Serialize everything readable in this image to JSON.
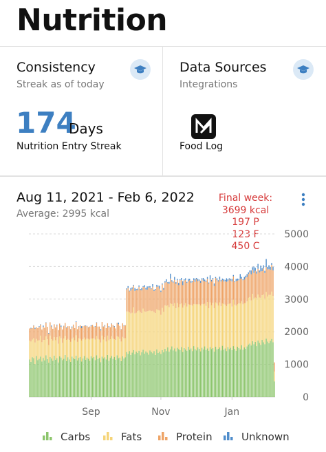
{
  "header": {
    "title": "Nutrition"
  },
  "cards": {
    "consistency": {
      "title": "Consistency",
      "subtitle": "Streak as of today",
      "value": 174,
      "unit": "Days",
      "label": "Nutrition Entry Streak"
    },
    "data_sources": {
      "title": "Data Sources",
      "subtitle": "Integrations",
      "items": [
        "Food Log"
      ]
    }
  },
  "chart_data": {
    "type": "bar",
    "stacked": true,
    "title": "Aug 11, 2021 - Feb 6, 2022",
    "subtitle": "Average: 2995 kcal",
    "annotation": [
      "Final week:",
      "3699 kcal",
      "197 P",
      "123 F",
      "450 C"
    ],
    "grid": true,
    "legend": "bottom",
    "ylim": [
      0,
      5000
    ],
    "yticks": [
      0,
      1000,
      2000,
      3000,
      4000,
      5000
    ],
    "categories": [
      null,
      null,
      null,
      null,
      null,
      null,
      null,
      null,
      null,
      null,
      null,
      null,
      null,
      null,
      null,
      null,
      null,
      null,
      null,
      null,
      null,
      null,
      null,
      null,
      null,
      null,
      null,
      null,
      null,
      null,
      null,
      null,
      null,
      null,
      null,
      null,
      null,
      null,
      null,
      null,
      null,
      null,
      null,
      null,
      null,
      "Sep",
      null,
      null,
      null,
      null,
      null,
      null,
      null,
      null,
      null,
      null,
      null,
      null,
      null,
      null,
      null,
      null,
      null,
      null,
      null,
      null,
      null,
      null,
      null,
      null,
      null,
      null,
      null,
      null,
      null,
      null,
      null,
      null,
      null,
      null,
      null,
      null,
      null,
      null,
      null,
      null,
      null,
      null,
      null,
      null,
      null,
      null,
      null,
      null,
      null,
      null,
      "Nov",
      null,
      null,
      null,
      null,
      null,
      null,
      null,
      null,
      null,
      null,
      null,
      null,
      null,
      null,
      null,
      null,
      null,
      null,
      null,
      null,
      null,
      null,
      null,
      null,
      null,
      null,
      null,
      null,
      null,
      null,
      null,
      null,
      null,
      null,
      null,
      null,
      null,
      null,
      null,
      null,
      null,
      null,
      null,
      null,
      null,
      null,
      null,
      null,
      null,
      null,
      null,
      "Jan",
      null,
      null,
      null,
      null,
      null,
      null,
      null,
      null,
      null,
      null,
      null,
      null,
      null,
      null,
      null,
      null,
      null,
      null,
      null,
      null,
      null,
      null,
      null,
      null,
      null,
      null,
      null,
      null,
      null,
      null,
      null
    ],
    "series": [
      {
        "name": "Carbs",
        "color": "#8cc56c",
        "values": [
          1150,
          1080,
          1220,
          1190,
          1010,
          1260,
          1130,
          1170,
          1240,
          1090,
          1200,
          1120,
          1280,
          1160,
          1050,
          1230,
          1180,
          1110,
          1270,
          1140,
          1190,
          1060,
          1250,
          1210,
          1130,
          1170,
          1290,
          1100,
          1220,
          1150,
          1080,
          1240,
          1190,
          1160,
          1270,
          1120,
          1200,
          1230,
          1090,
          1180,
          1260,
          1140,
          1210,
          1170,
          1110,
          1250,
          1190,
          1230,
          1130,
          1280,
          1160,
          1200,
          1070,
          1240,
          1180,
          1220,
          1150,
          1290,
          1110,
          1200,
          1260,
          1170,
          1230,
          1140,
          1280,
          1190,
          1210,
          1100,
          1250,
          1180,
          1220,
          1380,
          1320,
          1410,
          1290,
          1360,
          1440,
          1310,
          1390,
          1350,
          1420,
          1280,
          1370,
          1450,
          1330,
          1400,
          1360,
          1300,
          1430,
          1380,
          1340,
          1410,
          1290,
          1460,
          1350,
          1390,
          1320,
          1440,
          1370,
          1480,
          1410,
          1520,
          1390,
          1460,
          1550,
          1430,
          1490,
          1400,
          1510,
          1470,
          1440,
          1530,
          1380,
          1500,
          1460,
          1420,
          1540,
          1450,
          1490,
          1410,
          1560,
          1470,
          1430,
          1520,
          1480,
          1400,
          1510,
          1460,
          1550,
          1440,
          1490,
          1420,
          1530,
          1470,
          1500,
          1390,
          1540,
          1460,
          1480,
          1520,
          1430,
          1570,
          1450,
          1490,
          1410,
          1530,
          1470,
          1510,
          1440,
          1560,
          1480,
          1420,
          1540,
          1500,
          1460,
          1590,
          1450,
          1520,
          1480,
          1550,
          1610,
          1640,
          1580,
          1710,
          1620,
          1690,
          1560,
          1730,
          1660,
          1600,
          1750,
          1680,
          1620,
          1790,
          1700,
          1650,
          1720,
          1780,
          1680,
          480
        ]
      },
      {
        "name": "Fats",
        "color": "#f5d479",
        "values": [
          580,
          620,
          540,
          610,
          660,
          520,
          600,
          570,
          640,
          590,
          550,
          630,
          580,
          610,
          540,
          650,
          590,
          620,
          560,
          600,
          640,
          570,
          610,
          590,
          530,
          620,
          580,
          650,
          560,
          600,
          610,
          540,
          630,
          580,
          620,
          570,
          600,
          550,
          640,
          590,
          560,
          620,
          580,
          610,
          650,
          540,
          600,
          570,
          630,
          590,
          620,
          560,
          600,
          640,
          580,
          610,
          550,
          590,
          630,
          570,
          600,
          620,
          540,
          610,
          580,
          650,
          570,
          600,
          590,
          620,
          580,
          1240,
          1300,
          1180,
          1270,
          1220,
          1310,
          1250,
          1190,
          1280,
          1230,
          1320,
          1200,
          1260,
          1290,
          1210,
          1270,
          1340,
          1220,
          1250,
          1300,
          1190,
          1280,
          1230,
          1310,
          1260,
          1200,
          1290,
          1240,
          1330,
          1380,
          1290,
          1360,
          1410,
          1300,
          1350,
          1390,
          1320,
          1370,
          1280,
          1400,
          1340,
          1360,
          1310,
          1420,
          1350,
          1300,
          1380,
          1330,
          1390,
          1290,
          1370,
          1410,
          1320,
          1360,
          1400,
          1340,
          1380,
          1310,
          1350,
          1420,
          1300,
          1370,
          1340,
          1390,
          1330,
          1360,
          1410,
          1320,
          1380,
          1350,
          1300,
          1400,
          1340,
          1370,
          1310,
          1390,
          1360,
          1330,
          1420,
          1350,
          1380,
          1300,
          1370,
          1410,
          1340,
          1390,
          1360,
          1400,
          1380,
          1430,
          1420,
          1380,
          1450,
          1400,
          1360,
          1470,
          1410,
          1390,
          1440,
          1370,
          1460,
          1400,
          1430,
          1380,
          1480,
          1410,
          1450,
          1420,
          300
        ]
      },
      {
        "name": "Protein",
        "color": "#eea467",
        "values": [
          370,
          400,
          350,
          390,
          420,
          360,
          380,
          410,
          340,
          390,
          400,
          370,
          420,
          380,
          350,
          410,
          390,
          360,
          400,
          380,
          370,
          420,
          390,
          350,
          410,
          380,
          400,
          360,
          390,
          420,
          380,
          350,
          400,
          370,
          410,
          390,
          360,
          420,
          380,
          400,
          370,
          410,
          390,
          350,
          400,
          380,
          420,
          360,
          390,
          410,
          380,
          400,
          370,
          420,
          390,
          360,
          410,
          380,
          400,
          370,
          390,
          420,
          380,
          350,
          410,
          390,
          400,
          370,
          420,
          380,
          400,
          680,
          720,
          650,
          700,
          740,
          660,
          690,
          710,
          640,
          730,
          680,
          700,
          670,
          750,
          690,
          660,
          720,
          700,
          680,
          740,
          650,
          710,
          690,
          730,
          670,
          700,
          720,
          680,
          700,
          740,
          680,
          720,
          760,
          690,
          730,
          710,
          750,
          700,
          680,
          740,
          720,
          690,
          760,
          710,
          730,
          700,
          750,
          680,
          720,
          740,
          690,
          770,
          710,
          730,
          700,
          750,
          720,
          690,
          740,
          710,
          760,
          700,
          730,
          720,
          680,
          750,
          710,
          740,
          700,
          760,
          720,
          690,
          730,
          750,
          710,
          740,
          700,
          770,
          720,
          690,
          750,
          730,
          710,
          760,
          700,
          740,
          720,
          780,
          750,
          730,
          760,
          800,
          740,
          780,
          820,
          750,
          790,
          770,
          810,
          740,
          800,
          780,
          760,
          830,
          790,
          770,
          820,
          780,
          280
        ]
      },
      {
        "name": "Unknown",
        "color": "#4f8dcb",
        "values": [
          0,
          20,
          0,
          10,
          30,
          0,
          0,
          20,
          10,
          0,
          40,
          0,
          10,
          0,
          20,
          0,
          30,
          0,
          0,
          10,
          20,
          0,
          0,
          40,
          0,
          10,
          0,
          20,
          0,
          0,
          10,
          30,
          0,
          0,
          20,
          0,
          10,
          0,
          60,
          0,
          0,
          20,
          0,
          10,
          0,
          30,
          0,
          0,
          20,
          10,
          0,
          0,
          40,
          0,
          10,
          20,
          0,
          0,
          30,
          0,
          10,
          0,
          20,
          0,
          0,
          50,
          0,
          10,
          0,
          20,
          0,
          30,
          60,
          20,
          80,
          40,
          30,
          90,
          20,
          50,
          40,
          30,
          70,
          20,
          60,
          40,
          100,
          30,
          50,
          20,
          80,
          40,
          30,
          60,
          20,
          90,
          40,
          30,
          50,
          40,
          80,
          30,
          60,
          150,
          40,
          30,
          90,
          50,
          40,
          70,
          30,
          60,
          120,
          40,
          50,
          30,
          80,
          40,
          60,
          30,
          50,
          100,
          40,
          70,
          30,
          60,
          40,
          90,
          50,
          40,
          60,
          30,
          130,
          50,
          40,
          80,
          30,
          60,
          40,
          90,
          50,
          40,
          70,
          30,
          110,
          60,
          40,
          50,
          80,
          40,
          30,
          70,
          60,
          40,
          140,
          50,
          30,
          80,
          60,
          90,
          50,
          60,
          120,
          80,
          200,
          90,
          70,
          150,
          60,
          180,
          90,
          100,
          70,
          250,
          80,
          120,
          90,
          60,
          110,
          0
        ]
      }
    ]
  }
}
